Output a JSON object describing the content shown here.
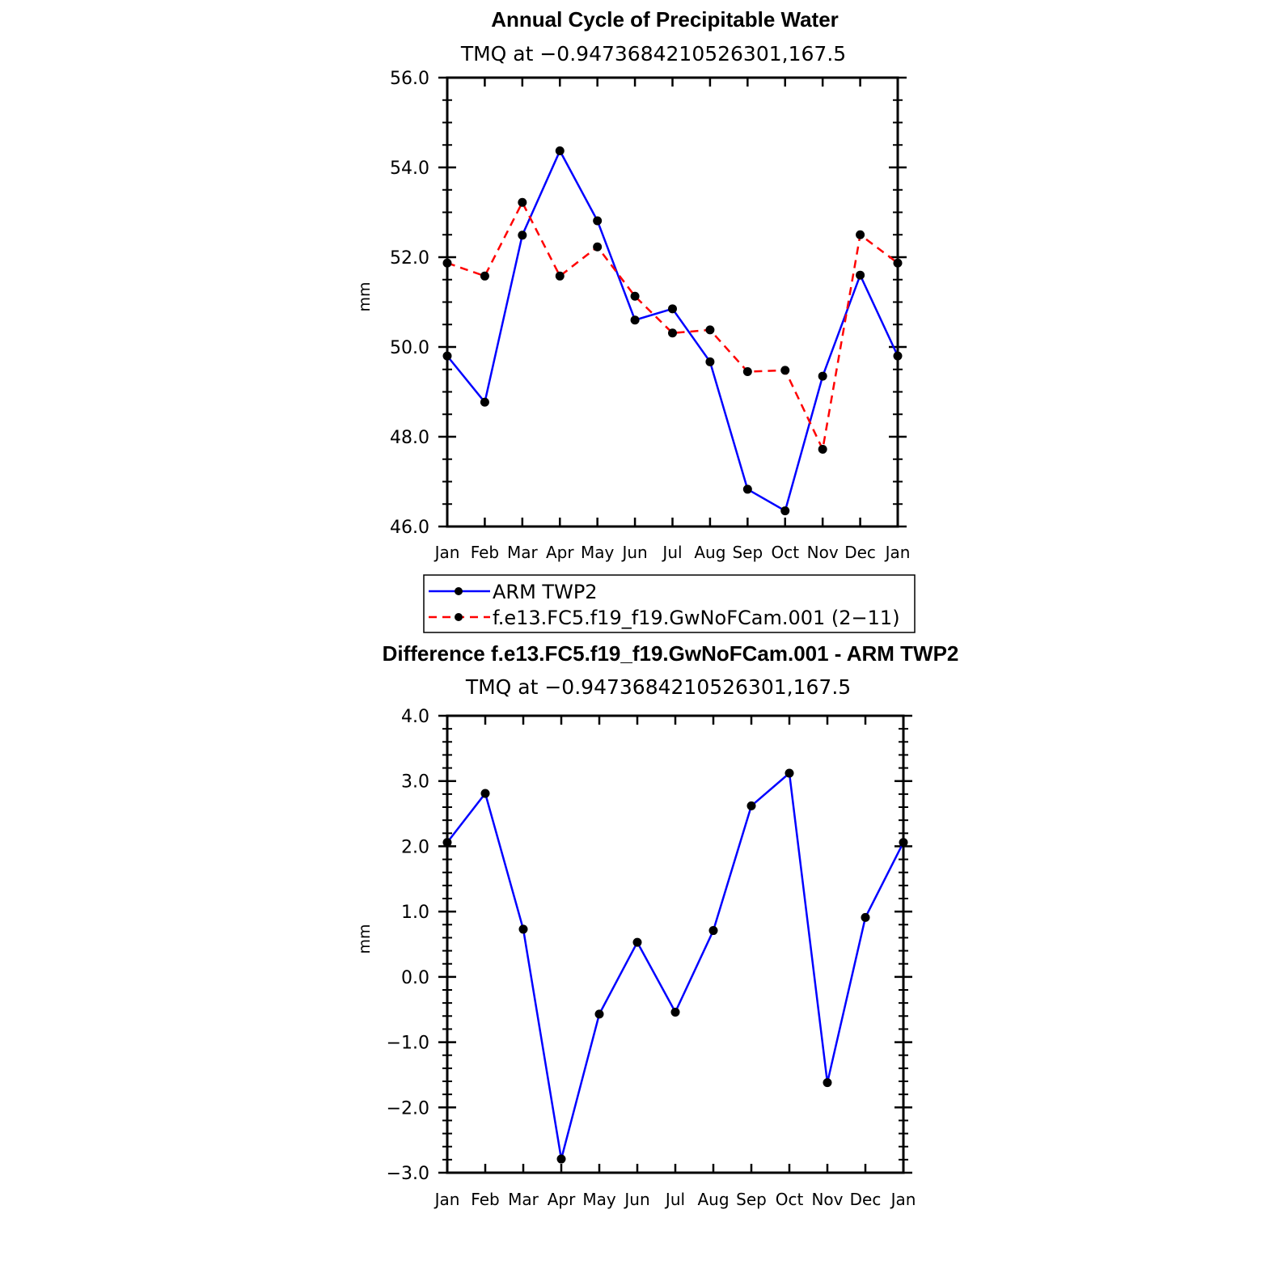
{
  "chart_data": [
    {
      "type": "line",
      "title": "Annual Cycle of Precipitable Water",
      "subtitle": "TMQ at −0.9473684210526301,167.5",
      "ylabel": "mm",
      "xlabel": "",
      "categories": [
        "Jan",
        "Feb",
        "Mar",
        "Apr",
        "May",
        "Jun",
        "Jul",
        "Aug",
        "Sep",
        "Oct",
        "Nov",
        "Dec",
        "Jan"
      ],
      "ylim": [
        46.0,
        56.0
      ],
      "yticks": [
        "46.0",
        "48.0",
        "50.0",
        "52.0",
        "54.0",
        "56.0"
      ],
      "yticks_values": [
        46,
        48,
        50,
        52,
        54,
        56
      ],
      "grid": false,
      "legend_position": "bottom",
      "series": [
        {
          "name": "ARM TWP2",
          "color": "#0000ff",
          "dash": "solid",
          "values": [
            49.8,
            48.77,
            52.49,
            54.37,
            52.81,
            50.6,
            50.85,
            49.67,
            46.83,
            46.35,
            49.35,
            51.6,
            49.8
          ]
        },
        {
          "name": "f.e13.FC5.f19_f19.GwNoFCam.001 (2−11)",
          "color": "#ff0000",
          "dash": "dashed",
          "values": [
            51.87,
            51.58,
            53.22,
            51.58,
            52.23,
            51.13,
            50.31,
            50.38,
            49.45,
            49.48,
            47.72,
            52.5,
            51.87
          ]
        }
      ]
    },
    {
      "type": "line",
      "title": "Difference f.e13.FC5.f19_f19.GwNoFCam.001 - ARM TWP2",
      "subtitle": "TMQ at −0.9473684210526301,167.5",
      "ylabel": "mm",
      "xlabel": "",
      "categories": [
        "Jan",
        "Feb",
        "Mar",
        "Apr",
        "May",
        "Jun",
        "Jul",
        "Aug",
        "Sep",
        "Oct",
        "Nov",
        "Dec",
        "Jan"
      ],
      "ylim": [
        -3.0,
        4.0
      ],
      "yticks": [
        "−3.0",
        "−2.0",
        "−1.0",
        "0.0",
        "1.0",
        "2.0",
        "3.0",
        "4.0"
      ],
      "yticks_values": [
        -3,
        -2,
        -1,
        0,
        1,
        2,
        3,
        4
      ],
      "grid": false,
      "series": [
        {
          "color": "#0000ff",
          "dash": "solid",
          "values": [
            2.06,
            2.81,
            0.73,
            -2.79,
            -0.57,
            0.53,
            -0.54,
            0.71,
            2.62,
            3.12,
            -1.62,
            0.91,
            2.06
          ]
        }
      ]
    }
  ]
}
